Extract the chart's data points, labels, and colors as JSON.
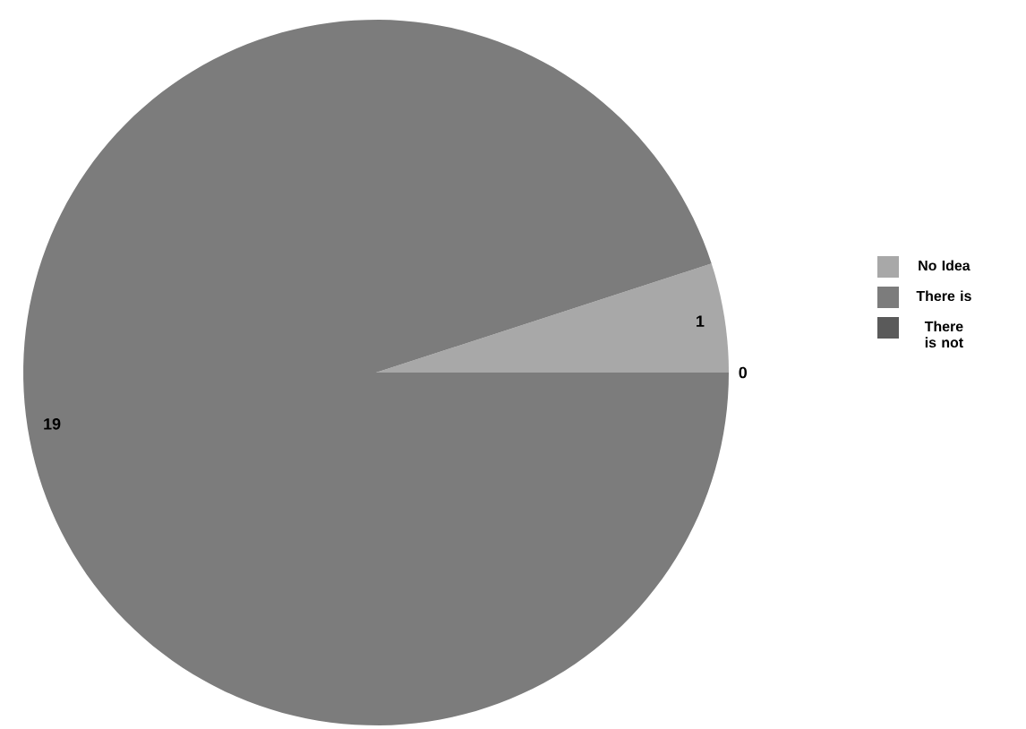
{
  "chart_data": {
    "type": "pie",
    "categories": [
      "No Idea",
      "There is",
      "There is not"
    ],
    "values": [
      1,
      19,
      0
    ],
    "colors": [
      "#a8a8a8",
      "#7c7c7c",
      "#5a5a5a"
    ],
    "value_labels": [
      "1",
      "19",
      "0"
    ],
    "legend": "right"
  }
}
